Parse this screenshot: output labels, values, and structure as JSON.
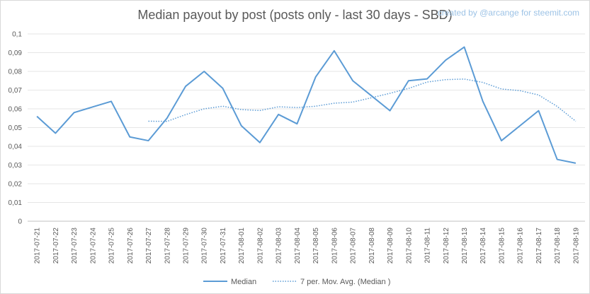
{
  "credit": "created by @arcange for steemit.com",
  "legend": {
    "median_label": "Median",
    "avg_label": "7 per. Mov. Avg. (Median )"
  },
  "chart_data": {
    "type": "line",
    "title": "Median payout by post (posts only - last 30 days - SBD)",
    "xlabel": "",
    "ylabel": "",
    "ylim": [
      0,
      0.1
    ],
    "grid": true,
    "legend_position": "bottom",
    "y_ticks": [
      "0",
      "0,01",
      "0,02",
      "0,03",
      "0,04",
      "0,05",
      "0,06",
      "0,07",
      "0,08",
      "0,09",
      "0,1"
    ],
    "x": [
      "2017-07-21",
      "2017-07-22",
      "2017-07-23",
      "2017-07-24",
      "2017-07-25",
      "2017-07-26",
      "2017-07-27",
      "2017-07-28",
      "2017-07-29",
      "2017-07-30",
      "2017-07-31",
      "2017-08-01",
      "2017-08-02",
      "2017-08-03",
      "2017-08-04",
      "2017-08-05",
      "2017-08-06",
      "2017-08-07",
      "2017-08-08",
      "2017-08-09",
      "2017-08-10",
      "2017-08-11",
      "2017-08-12",
      "2017-08-13",
      "2017-08-14",
      "2017-08-15",
      "2017-08-16",
      "2017-08-17",
      "2017-08-18",
      "2017-08-19"
    ],
    "series": [
      {
        "name": "Median",
        "color": "#5b9bd5",
        "style": "solid",
        "values": [
          0.056,
          0.047,
          0.058,
          0.061,
          0.064,
          0.045,
          0.043,
          0.055,
          0.072,
          0.08,
          0.071,
          0.051,
          0.042,
          0.057,
          0.052,
          0.077,
          0.091,
          0.075,
          0.067,
          0.059,
          0.075,
          0.076,
          0.086,
          0.093,
          0.064,
          0.043,
          0.051,
          0.059,
          0.033,
          0.031
        ]
      },
      {
        "name": "7 per. Mov. Avg. (Median )",
        "color": "#5b9bd5",
        "style": "dotted",
        "values": [
          null,
          null,
          null,
          null,
          null,
          null,
          0.0534,
          0.0533,
          0.0569,
          0.06,
          0.0614,
          0.0596,
          0.0591,
          0.0611,
          0.0607,
          0.0614,
          0.063,
          0.0636,
          0.0659,
          0.0683,
          0.0709,
          0.0743,
          0.0756,
          0.0759,
          0.0741,
          0.0706,
          0.0697,
          0.0674,
          0.0613,
          0.0534
        ]
      }
    ]
  }
}
